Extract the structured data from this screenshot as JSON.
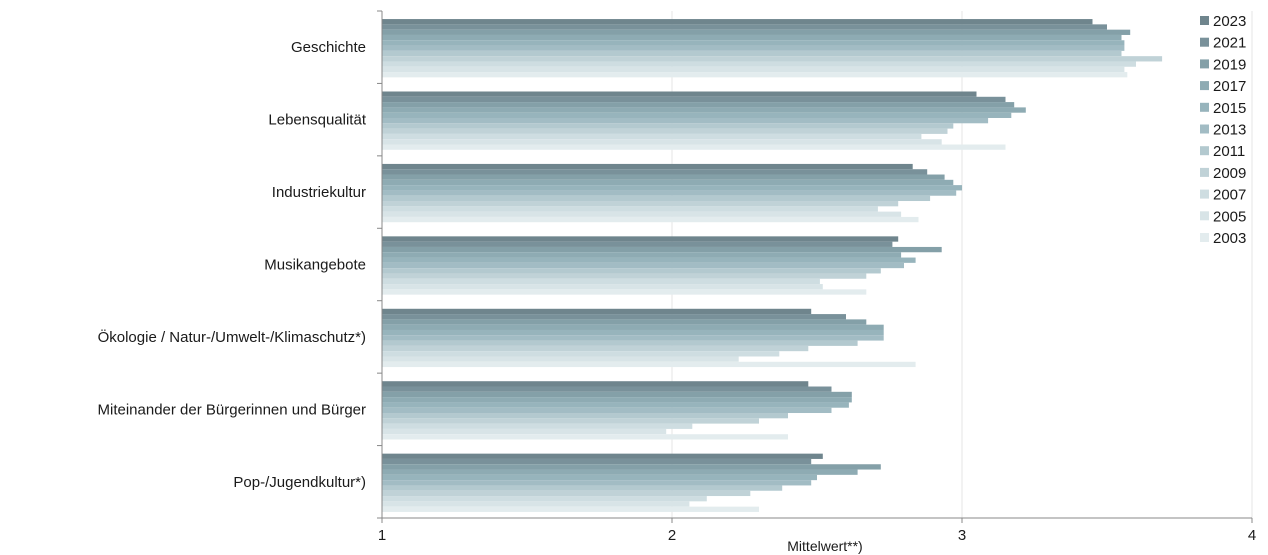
{
  "chart_data": {
    "type": "bar",
    "orientation": "horizontal",
    "title": "",
    "xlabel": "Mittelwert**)",
    "ylabel": "",
    "xlim": [
      1,
      4
    ],
    "xticks": [
      "1",
      "2",
      "3",
      "4"
    ],
    "grid": true,
    "legend_position": "top-right",
    "categories": [
      "Geschichte",
      "Lebensqualität",
      "Industriekultur",
      "Musikangebote",
      "Ökologie / Natur-/Umwelt-/Klimaschutz*)",
      "Miteinander der Bürgerinnen und Bürger",
      "Pop-/Jugendkultur*)"
    ],
    "series": [
      {
        "name": "2023",
        "color": "#6f858d",
        "values": [
          3.45,
          3.05,
          2.83,
          2.78,
          2.48,
          2.47,
          2.52
        ]
      },
      {
        "name": "2021",
        "color": "#79919a",
        "values": [
          3.5,
          3.15,
          2.88,
          2.76,
          2.6,
          2.55,
          2.48
        ]
      },
      {
        "name": "2019",
        "color": "#84a0a8",
        "values": [
          3.58,
          3.18,
          2.94,
          2.93,
          2.67,
          2.62,
          2.72
        ]
      },
      {
        "name": "2017",
        "color": "#8eabb3",
        "values": [
          3.55,
          3.22,
          2.97,
          2.79,
          2.73,
          2.62,
          2.64
        ]
      },
      {
        "name": "2015",
        "color": "#97b4bc",
        "values": [
          3.56,
          3.17,
          3.0,
          2.84,
          2.73,
          2.61,
          2.5
        ]
      },
      {
        "name": "2013",
        "color": "#a2bcc4",
        "values": [
          3.56,
          3.09,
          2.98,
          2.8,
          2.73,
          2.55,
          2.48
        ]
      },
      {
        "name": "2011",
        "color": "#b3c9cf",
        "values": [
          3.55,
          2.97,
          2.89,
          2.72,
          2.64,
          2.4,
          2.38
        ]
      },
      {
        "name": "2009",
        "color": "#c0d2d7",
        "values": [
          3.69,
          2.95,
          2.78,
          2.67,
          2.47,
          2.3,
          2.27
        ]
      },
      {
        "name": "2007",
        "color": "#cedde1",
        "values": [
          3.6,
          2.86,
          2.71,
          2.51,
          2.37,
          2.07,
          2.12
        ]
      },
      {
        "name": "2005",
        "color": "#d8e4e7",
        "values": [
          3.56,
          2.93,
          2.79,
          2.52,
          2.23,
          1.98,
          2.06
        ]
      },
      {
        "name": "2003",
        "color": "#e3ecee",
        "values": [
          3.57,
          3.15,
          2.85,
          2.67,
          2.84,
          2.4,
          2.3
        ]
      }
    ]
  }
}
